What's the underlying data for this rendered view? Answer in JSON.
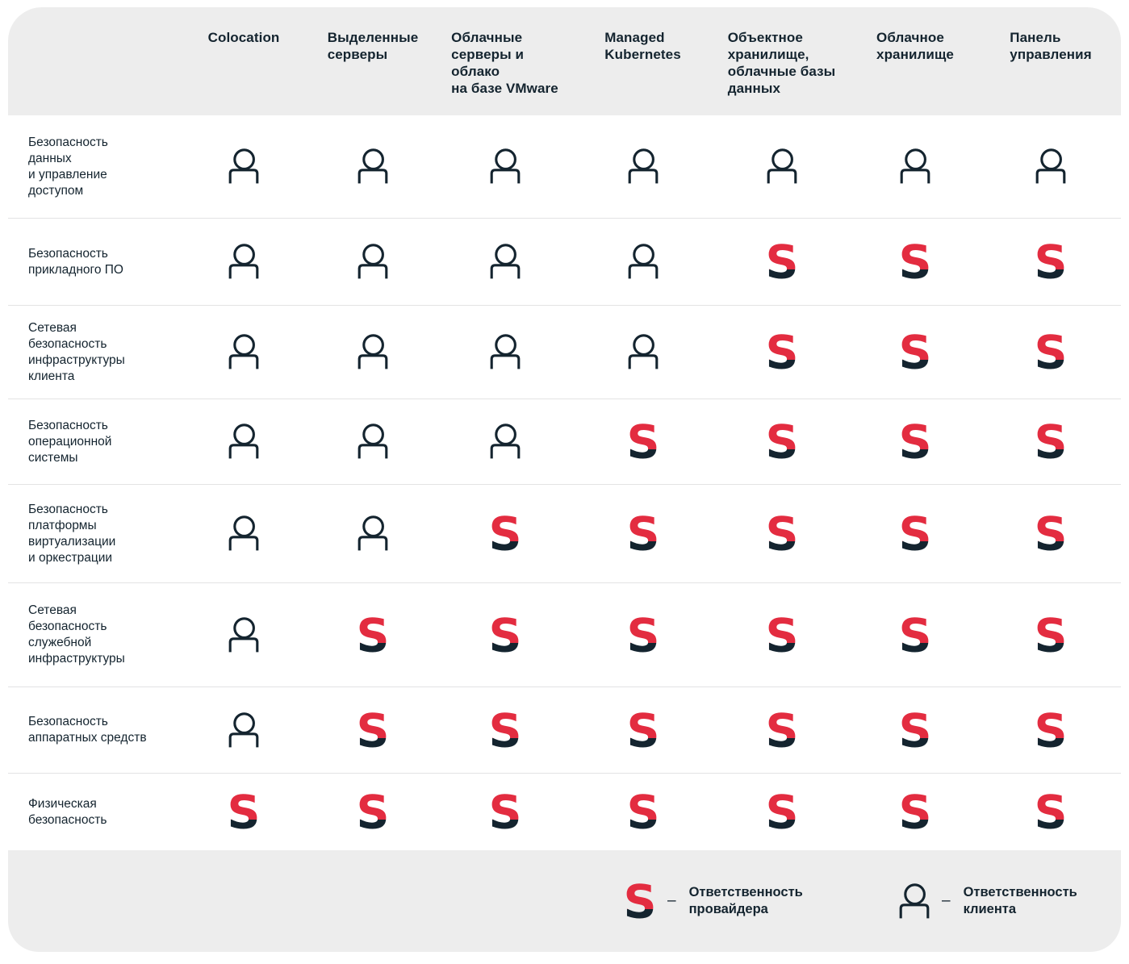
{
  "table": {
    "columns": [
      {
        "label": "Colocation"
      },
      {
        "label": "Выделенные\nсерверы"
      },
      {
        "label": "Облачные\nсерверы и\nоблако\nна базе VMware"
      },
      {
        "label": "Managed\nKubernetes"
      },
      {
        "label": "Объектное\nхранилище,\nоблачные базы\nданных"
      },
      {
        "label": "Облачное\nхранилище"
      },
      {
        "label": "Панель\nуправления"
      }
    ],
    "rows": [
      {
        "label": "Безопасность\nданных\nи управление\nдоступом",
        "cells": [
          "client",
          "client",
          "client",
          "client",
          "client",
          "client",
          "client"
        ]
      },
      {
        "label": "Безопасность\nприкладного ПО",
        "cells": [
          "client",
          "client",
          "client",
          "client",
          "provider",
          "provider",
          "provider"
        ]
      },
      {
        "label": "Сетевая\nбезопасность\nинфраструктуры\nклиента",
        "cells": [
          "client",
          "client",
          "client",
          "client",
          "provider",
          "provider",
          "provider"
        ]
      },
      {
        "label": "Безопасность\nоперационной\nсистемы",
        "cells": [
          "client",
          "client",
          "client",
          "provider",
          "provider",
          "provider",
          "provider"
        ]
      },
      {
        "label": "Безопасность\nплатформы\nвиртуализации\nи оркестрации",
        "cells": [
          "client",
          "client",
          "provider",
          "provider",
          "provider",
          "provider",
          "provider"
        ]
      },
      {
        "label": "Сетевая\nбезопасность\nслужебной\nинфраструктуры",
        "cells": [
          "client",
          "provider",
          "provider",
          "provider",
          "provider",
          "provider",
          "provider"
        ]
      },
      {
        "label": "Безопасность\nаппаратных средств",
        "cells": [
          "client",
          "provider",
          "provider",
          "provider",
          "provider",
          "provider",
          "provider"
        ]
      },
      {
        "label": "Физическая\nбезопасность",
        "cells": [
          "provider",
          "provider",
          "provider",
          "provider",
          "provider",
          "provider",
          "provider"
        ]
      }
    ]
  },
  "legend": {
    "provider": {
      "icon": "selectel-s-icon",
      "dash": "–",
      "label": "Ответственность\nпровайдера"
    },
    "client": {
      "icon": "person-icon",
      "dash": "–",
      "label": "Ответственность\nклиента"
    }
  },
  "colors": {
    "brand_red": "#e32c40",
    "dark_navy": "#14242f",
    "band_gray": "#ededed",
    "separator": "#e3e3e4"
  }
}
